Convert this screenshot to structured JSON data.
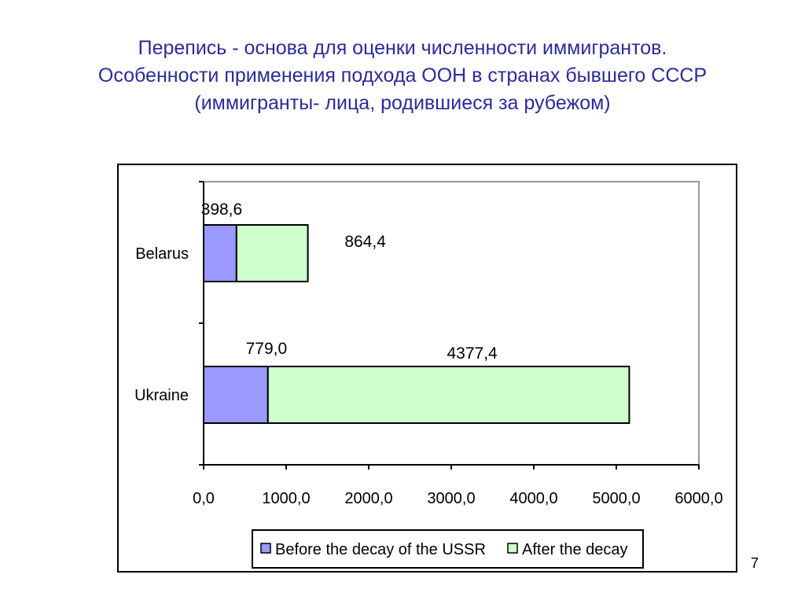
{
  "slide": {
    "title_lines": [
      "Перепись -  основа для оценки численности иммигрантов.",
      "Особенности применения подхода ООН в странах бывшего СССР",
      "(иммигранты- лица, родившиеся за рубежом)"
    ],
    "page_number": "7",
    "title_color": "#2b2b9a"
  },
  "chart_data": {
    "type": "bar",
    "orientation": "horizontal",
    "stacked": true,
    "categories": [
      "Belarus",
      "Ukraine"
    ],
    "series": [
      {
        "name": "Before the decay of the USSR",
        "values": [
          398.6,
          779.0
        ],
        "labels": [
          "398,6",
          "779,0"
        ],
        "color": "#9999ff"
      },
      {
        "name": "After the decay",
        "values": [
          864.4,
          4377.4
        ],
        "labels": [
          "864,4",
          "4377,4"
        ],
        "color": "#ccffcc"
      }
    ],
    "x_ticks": [
      0,
      1000,
      2000,
      3000,
      4000,
      5000,
      6000
    ],
    "x_tick_labels": [
      "0,0",
      "1000,0",
      "2000,0",
      "3000,0",
      "4000,0",
      "5000,0",
      "6000,0"
    ],
    "xlim": [
      0,
      6000
    ],
    "legend_position": "bottom",
    "grid": false,
    "title": "",
    "xlabel": "",
    "ylabel": ""
  }
}
